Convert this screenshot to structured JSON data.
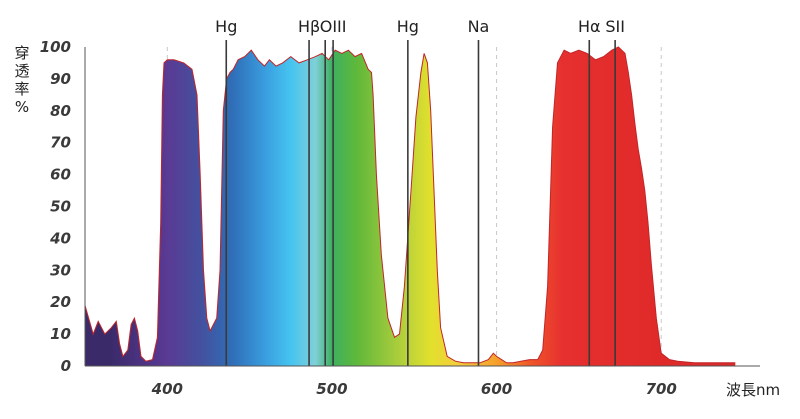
{
  "chart_data": {
    "type": "area",
    "ylabel": "穿透率%",
    "xlabel": "波長nm",
    "xlim": [
      350,
      760
    ],
    "ylim": [
      0,
      100
    ],
    "x_ticks": [
      400,
      500,
      600,
      700
    ],
    "y_ticks": [
      0,
      10,
      20,
      30,
      40,
      50,
      60,
      70,
      80,
      90,
      100
    ],
    "grid": "vertical dashed",
    "series": [
      {
        "x": [
          350,
          355,
          358,
          362,
          366,
          369,
          371,
          373,
          376,
          378,
          380,
          382,
          384,
          387,
          391,
          394,
          396,
          397,
          398,
          400,
          404,
          410,
          415,
          418,
          420,
          422,
          424,
          426,
          428,
          430,
          432,
          434,
          436,
          438,
          440,
          443,
          447,
          451,
          455,
          459,
          462,
          466,
          470,
          475,
          480,
          485,
          490,
          494,
          498,
          502,
          506,
          510,
          514,
          518,
          522,
          524,
          525,
          527,
          530,
          534,
          538,
          541,
          544,
          548,
          551,
          554,
          556,
          558,
          560,
          562,
          564,
          566,
          570,
          575,
          580,
          590,
          595,
          598,
          600,
          603,
          606,
          610,
          620,
          625,
          628,
          631,
          634,
          637,
          641,
          645,
          650,
          655,
          660,
          665,
          670,
          674,
          678,
          680,
          682,
          684,
          686,
          688,
          690,
          692,
          694,
          697,
          700,
          705,
          710,
          720,
          730,
          740,
          745
        ],
        "y": [
          19,
          10,
          14,
          10,
          12,
          14,
          7,
          3,
          5,
          13,
          15,
          11,
          3,
          1.5,
          2,
          9,
          45,
          85,
          95,
          96,
          96,
          95,
          93,
          85,
          60,
          30,
          15,
          11,
          13,
          15,
          30,
          80,
          90,
          92,
          93,
          96,
          97,
          99,
          96,
          94,
          96,
          94,
          95,
          97,
          95,
          96,
          97,
          98,
          96,
          99,
          98,
          99,
          97,
          98,
          93,
          92,
          85,
          60,
          35,
          15,
          9,
          10,
          25,
          55,
          78,
          92,
          98,
          95,
          80,
          55,
          30,
          12,
          3,
          1.5,
          1,
          1,
          2,
          4,
          3,
          2,
          1,
          1,
          2,
          2,
          5,
          25,
          75,
          95,
          99,
          98,
          99,
          98,
          96,
          97,
          99,
          100,
          98,
          92,
          85,
          76,
          68,
          62,
          55,
          45,
          32,
          15,
          4,
          2,
          1.5,
          1,
          1,
          1,
          1
        ]
      }
    ],
    "reference_lines": [
      {
        "label": "Hg",
        "x": 435.8
      },
      {
        "label": "Hβ",
        "x": 486.1
      },
      {
        "label": "OIII",
        "x": 495.9
      },
      {
        "label": "OIII_2",
        "x": 500.7
      },
      {
        "label": "Hg",
        "x": 546.1
      },
      {
        "label": "Na",
        "x": 589.0
      },
      {
        "label": "Hα",
        "x": 656.3
      },
      {
        "label": "SII",
        "x": 672.0
      }
    ],
    "line_labels": [
      {
        "text": "Hg",
        "x": 435.8
      },
      {
        "text": "Hβ",
        "x": 486.1
      },
      {
        "text": "OIII",
        "x": 500.7
      },
      {
        "text": "Hg",
        "x": 546.1
      },
      {
        "text": "Na",
        "x": 589.0
      },
      {
        "text": "Hα",
        "x": 656.3
      },
      {
        "text": "SII",
        "x": 672.0
      }
    ],
    "colors": {
      "fill_stops": [
        {
          "nm": 365,
          "color": "#3a2a6a"
        },
        {
          "nm": 400,
          "color": "#5a3a94"
        },
        {
          "nm": 420,
          "color": "#44509e"
        },
        {
          "nm": 440,
          "color": "#2f6fb8"
        },
        {
          "nm": 460,
          "color": "#3a9fe0"
        },
        {
          "nm": 475,
          "color": "#46c4f0"
        },
        {
          "nm": 490,
          "color": "#7fd0d8"
        },
        {
          "nm": 500,
          "color": "#3db060"
        },
        {
          "nm": 515,
          "color": "#5fb83a"
        },
        {
          "nm": 530,
          "color": "#8cc43c"
        },
        {
          "nm": 545,
          "color": "#b8d23a"
        },
        {
          "nm": 560,
          "color": "#e2e02c"
        },
        {
          "nm": 575,
          "color": "#f2cf3c"
        },
        {
          "nm": 600,
          "color": "#f6a02c"
        },
        {
          "nm": 620,
          "color": "#f05828"
        },
        {
          "nm": 640,
          "color": "#e63030"
        },
        {
          "nm": 700,
          "color": "#e02a2a"
        },
        {
          "nm": 760,
          "color": "#d82828"
        }
      ],
      "outline": "#c0262a",
      "reference_line": "#3a3a3a",
      "grid": "#c8c8c8"
    }
  }
}
